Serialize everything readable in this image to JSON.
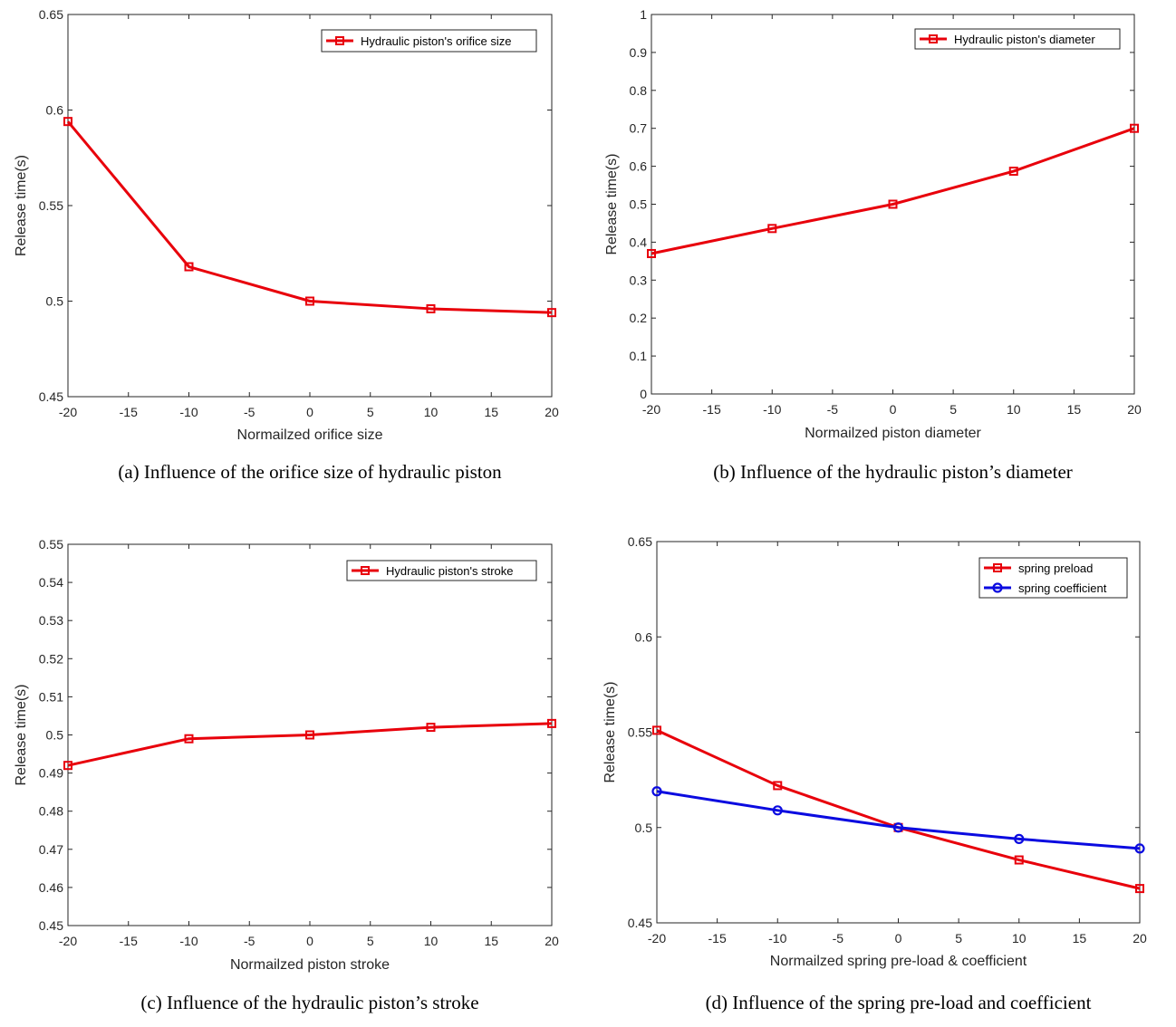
{
  "colors": {
    "red": "#e8000b",
    "blue": "#0b0be0",
    "axis": "#262626"
  },
  "chart_data": [
    {
      "type": "line",
      "caption": "(a) Influence of the orifice size of hydraulic piston",
      "xlabel": "Normailzed orifice size",
      "ylabel": "Release time(s)",
      "xlim": [
        -20,
        20
      ],
      "ylim": [
        0.45,
        0.65
      ],
      "xticks": [
        -20,
        -15,
        -10,
        -5,
        0,
        5,
        10,
        15,
        20
      ],
      "xtick_labels": [
        "-20",
        "-15",
        "-10",
        "-5",
        "0",
        "5",
        "10",
        "15",
        "20"
      ],
      "yticks": [
        0.45,
        0.5,
        0.55,
        0.6,
        0.65
      ],
      "ytick_labels": [
        "0.45",
        "0.5",
        "0.55",
        "0.6",
        "0.65"
      ],
      "legend_position": "top-right",
      "series": [
        {
          "name": "Hydraulic piston's orifice size",
          "color": "#e8000b",
          "marker": "square",
          "x": [
            -20,
            -10,
            0,
            10,
            20
          ],
          "y": [
            0.594,
            0.518,
            0.5,
            0.496,
            0.494
          ]
        }
      ]
    },
    {
      "type": "line",
      "caption": "(b) Influence of the hydraulic piston’s diameter",
      "xlabel": "Normailzed piston diameter",
      "ylabel": "Release time(s)",
      "xlim": [
        -20,
        20
      ],
      "ylim": [
        0,
        1
      ],
      "xticks": [
        -20,
        -15,
        -10,
        -5,
        0,
        5,
        10,
        15,
        20
      ],
      "xtick_labels": [
        "-20",
        "-15",
        "-10",
        "-5",
        "0",
        "5",
        "10",
        "15",
        "20"
      ],
      "yticks": [
        0,
        0.1,
        0.2,
        0.3,
        0.4,
        0.5,
        0.6,
        0.7,
        0.8,
        0.9,
        1
      ],
      "ytick_labels": [
        "0",
        "0.1",
        "0.2",
        "0.3",
        "0.4",
        "0.5",
        "0.6",
        "0.7",
        "0.8",
        "0.9",
        "1"
      ],
      "legend_position": "top-right",
      "series": [
        {
          "name": "Hydraulic piston's diameter",
          "color": "#e8000b",
          "marker": "square",
          "x": [
            -20,
            -10,
            0,
            10,
            20
          ],
          "y": [
            0.37,
            0.436,
            0.5,
            0.587,
            0.7
          ]
        }
      ]
    },
    {
      "type": "line",
      "caption": "(c) Influence of the hydraulic piston’s stroke",
      "xlabel": "Normailzed piston stroke",
      "ylabel": "Release time(s)",
      "xlim": [
        -20,
        20
      ],
      "ylim": [
        0.45,
        0.55
      ],
      "xticks": [
        -20,
        -15,
        -10,
        -5,
        0,
        5,
        10,
        15,
        20
      ],
      "xtick_labels": [
        "-20",
        "-15",
        "-10",
        "-5",
        "0",
        "5",
        "10",
        "15",
        "20"
      ],
      "yticks": [
        0.45,
        0.46,
        0.47,
        0.48,
        0.49,
        0.5,
        0.51,
        0.52,
        0.53,
        0.54,
        0.55
      ],
      "ytick_labels": [
        "0.45",
        "0.46",
        "0.47",
        "0.48",
        "0.49",
        "0.5",
        "0.51",
        "0.52",
        "0.53",
        "0.54",
        "0.55"
      ],
      "legend_position": "top-right",
      "series": [
        {
          "name": "Hydraulic piston's stroke",
          "color": "#e8000b",
          "marker": "square",
          "x": [
            -20,
            -10,
            0,
            10,
            20
          ],
          "y": [
            0.492,
            0.499,
            0.5,
            0.502,
            0.503
          ]
        }
      ]
    },
    {
      "type": "line",
      "caption": "(d) Influence of the spring pre-load and coefficient",
      "xlabel": "Normailzed spring pre-load & coefficient",
      "ylabel": "Release time(s)",
      "xlim": [
        -20,
        20
      ],
      "ylim": [
        0.45,
        0.65
      ],
      "xticks": [
        -20,
        -15,
        -10,
        -5,
        0,
        5,
        10,
        15,
        20
      ],
      "xtick_labels": [
        "-20",
        "-15",
        "-10",
        "-5",
        "0",
        "5",
        "10",
        "15",
        "20"
      ],
      "yticks": [
        0.45,
        0.5,
        0.55,
        0.6,
        0.65
      ],
      "ytick_labels": [
        "0.45",
        "0.5",
        "0.55",
        "0.6",
        "0.65"
      ],
      "legend_position": "top-right",
      "series": [
        {
          "name": "spring preload",
          "color": "#e8000b",
          "marker": "square",
          "x": [
            -20,
            -10,
            0,
            10,
            20
          ],
          "y": [
            0.551,
            0.522,
            0.5,
            0.483,
            0.468
          ]
        },
        {
          "name": "spring coefficient",
          "color": "#0b0be0",
          "marker": "circle",
          "x": [
            -20,
            -10,
            0,
            10,
            20
          ],
          "y": [
            0.519,
            0.509,
            0.5,
            0.494,
            0.489
          ]
        }
      ]
    }
  ]
}
